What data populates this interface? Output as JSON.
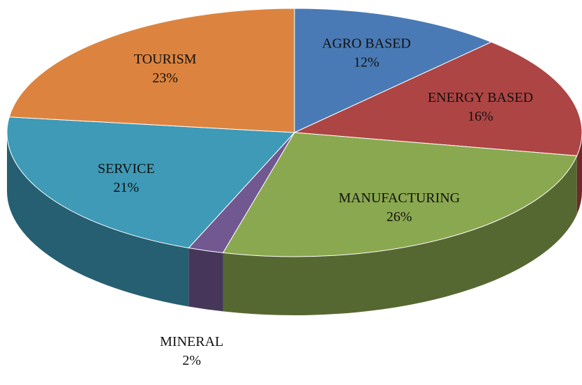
{
  "chart_data": {
    "type": "pie",
    "categories": [
      "AGRO BASED",
      "ENERGY BASED",
      "MANUFACTURING",
      "MINERAL",
      "SERVICE",
      "TOURISM"
    ],
    "values": [
      12,
      16,
      26,
      2,
      21,
      23
    ],
    "value_labels": [
      "12%",
      "16%",
      "26%",
      "2%",
      "21%",
      "23%"
    ],
    "colors": [
      "#4a7ab5",
      "#ad4544",
      "#8aa84f",
      "#715891",
      "#3e9ab6",
      "#dc843f"
    ]
  }
}
